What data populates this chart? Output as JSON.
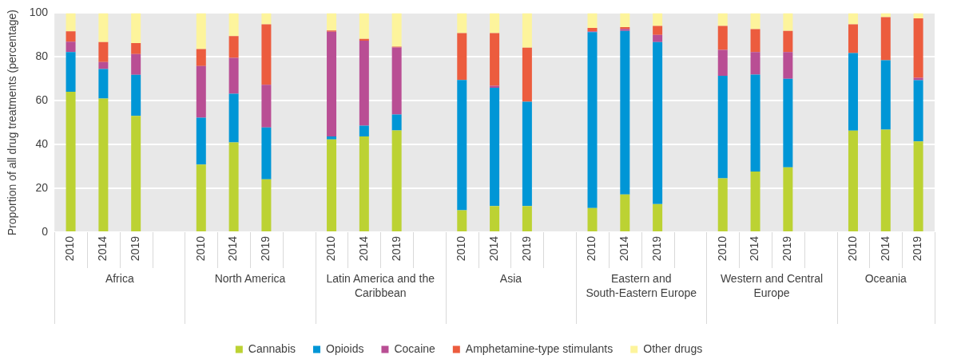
{
  "chart_data": {
    "type": "bar",
    "stacked": true,
    "ylabel": "Proportion of all drug treatments (percentage)",
    "categories": [
      "2010",
      "2014",
      "2019",
      null,
      "2010",
      "2014",
      "2019",
      null,
      "2010",
      "2014",
      "2019",
      null,
      "2010",
      "2014",
      "2019",
      null,
      "2010",
      "2014",
      "2019",
      null,
      "2010",
      "2014",
      "2019",
      null,
      "2010",
      "2014",
      "2019"
    ],
    "annotations": [
      "Africa",
      "North America",
      "Latin America and the Caribbean",
      "Asia",
      "Eastern and South-Eastern Europe",
      "Western and Central Europe",
      "Oceania"
    ],
    "series": [
      {
        "name": "Cannabis",
        "color": "#bcd233",
        "values": [
          64.1,
          61,
          53.1,
          null,
          30.9,
          41,
          24.1,
          null,
          42.3,
          43.7,
          46.4,
          null,
          10,
          11.9,
          11.9,
          null,
          11,
          17.2,
          12.8,
          null,
          24.6,
          27.7,
          29.6,
          null,
          46.3,
          46.8,
          41.4
        ]
      },
      {
        "name": "Opioids",
        "color": "#0096d6",
        "values": [
          18.1,
          13.5,
          18.7,
          null,
          21.4,
          22.2,
          23.7,
          null,
          1.4,
          4.9,
          7.3,
          null,
          59.5,
          54,
          47.6,
          null,
          80.3,
          74.7,
          74,
          null,
          46.8,
          44.2,
          40.4,
          null,
          35.5,
          31.7,
          28
        ]
      },
      {
        "name": "Cocaine",
        "color": "#b94e94",
        "values": [
          4.7,
          3.2,
          9.5,
          null,
          23.5,
          16.4,
          19.5,
          null,
          47.8,
          38.8,
          30.6,
          null,
          0,
          0.9,
          0,
          null,
          0.4,
          0.9,
          3.2,
          null,
          11.8,
          10.3,
          12.2,
          null,
          0,
          0,
          1.1
        ]
      },
      {
        "name": "Amphetamine-type stimulants",
        "color": "#ec5c3e",
        "values": [
          4.8,
          9.1,
          5,
          null,
          7.8,
          9.9,
          27.6,
          null,
          0.5,
          0.8,
          0.4,
          null,
          21.4,
          24.1,
          24.7,
          null,
          1.5,
          0.8,
          4.1,
          null,
          10.9,
          10.5,
          9.7,
          null,
          13.1,
          19.6,
          27.1
        ]
      },
      {
        "name": "Other drugs",
        "color": "#fdf49c",
        "values": [
          8.3,
          13.2,
          13.7,
          null,
          16.4,
          10.5,
          5.1,
          null,
          8,
          11.8,
          15.3,
          null,
          9.1,
          9.1,
          15.8,
          null,
          6.8,
          6.4,
          5.9,
          null,
          5.9,
          7.3,
          8.1,
          null,
          5.1,
          1.9,
          2.4
        ]
      }
    ],
    "ylim": [
      0,
      100
    ],
    "yticks": [
      0,
      20,
      40,
      60,
      80,
      100
    ],
    "grid": "y",
    "legend": "bottom"
  }
}
